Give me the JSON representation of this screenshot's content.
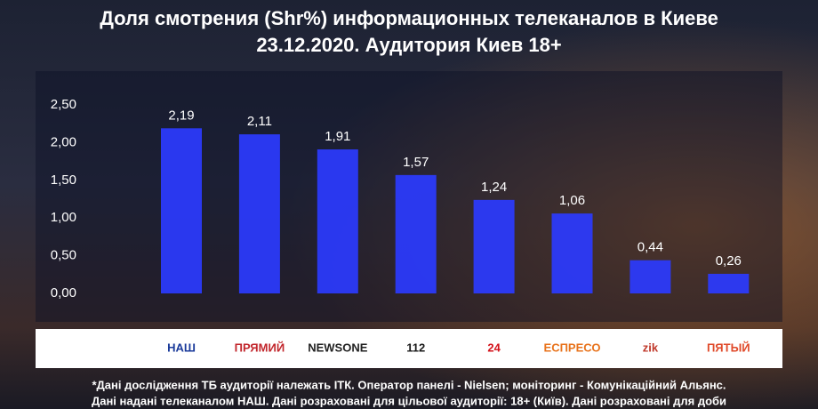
{
  "chart_data": {
    "type": "bar",
    "title": "Доля смотрения (Shr%) информационных телеканалов в Киеве",
    "subtitle": "23.12.2020. Аудитория Киев 18+",
    "categories": [
      "НАШ",
      "ПРЯМИЙ",
      "NEWSONE",
      "112",
      "24",
      "ЕСПРЕСО",
      "zik",
      "ПЯТЫЙ"
    ],
    "values": [
      2.19,
      2.11,
      1.91,
      1.57,
      1.24,
      1.06,
      0.44,
      0.26
    ],
    "value_labels": [
      "2,19",
      "2,11",
      "1,91",
      "1,57",
      "1,24",
      "1,06",
      "0,44",
      "0,26"
    ],
    "color": "#2b3bff",
    "ylim": [
      0,
      2.5
    ],
    "yticks": [
      {
        "value": 0,
        "label": "0,00"
      },
      {
        "value": 0.5,
        "label": "0,50"
      },
      {
        "value": 1,
        "label": "1,00"
      },
      {
        "value": 1.5,
        "label": "1,50"
      },
      {
        "value": 2,
        "label": "2,00"
      },
      {
        "value": 2.5,
        "label": "2,50"
      }
    ],
    "grid": false,
    "notes": [
      "*Дані дослідження ТБ аудиторії належать ІТК. Оператор панелі - Nielsen; моніторинг - Комунікаційний Альянс.",
      "Дані надані телеканалом НАШ. Дані розраховані для цільової аудиторії: 18+ (Київ). Дані розраховані для доби"
    ]
  }
}
